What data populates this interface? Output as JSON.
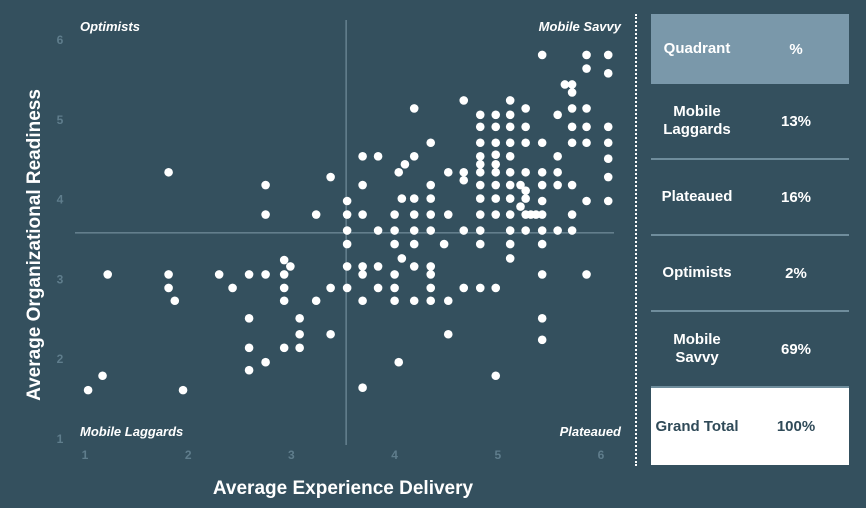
{
  "chart_data": {
    "type": "scatter",
    "xlabel": "Average Experience Delivery",
    "ylabel": "Average Organizational Readiness",
    "xlim": [
      1,
      6
    ],
    "ylim": [
      1,
      6
    ],
    "x_ticks": [
      "1",
      "2",
      "3",
      "4",
      "5",
      "6"
    ],
    "y_ticks": [
      "1",
      "2",
      "3",
      "4",
      "5",
      "6"
    ],
    "grid": false,
    "dividers": {
      "x": 3.53,
      "y": 3.57
    },
    "quadrant_labels": {
      "top_left": "Optimists",
      "top_right": "Mobile Savvy",
      "bottom_left": "Mobile Laggards",
      "bottom_right": "Plateaued"
    },
    "points": [
      [
        1.03,
        1.6
      ],
      [
        1.17,
        1.78
      ],
      [
        1.22,
        3.05
      ],
      [
        1.81,
        4.33
      ],
      [
        1.81,
        3.05
      ],
      [
        1.81,
        2.88
      ],
      [
        1.87,
        2.72
      ],
      [
        1.95,
        1.6
      ],
      [
        2.3,
        3.05
      ],
      [
        2.43,
        2.88
      ],
      [
        2.59,
        3.05
      ],
      [
        2.59,
        2.5
      ],
      [
        2.59,
        2.13
      ],
      [
        2.59,
        1.85
      ],
      [
        2.75,
        4.17
      ],
      [
        2.75,
        3.8
      ],
      [
        2.75,
        3.05
      ],
      [
        2.75,
        1.95
      ],
      [
        2.93,
        3.23
      ],
      [
        2.93,
        3.05
      ],
      [
        2.93,
        2.88
      ],
      [
        2.93,
        2.72
      ],
      [
        2.93,
        2.13
      ],
      [
        2.99,
        3.15
      ],
      [
        3.08,
        2.5
      ],
      [
        3.08,
        2.3
      ],
      [
        3.08,
        2.13
      ],
      [
        3.24,
        3.8
      ],
      [
        3.24,
        2.72
      ],
      [
        3.38,
        4.27
      ],
      [
        3.38,
        2.88
      ],
      [
        3.38,
        2.3
      ],
      [
        3.54,
        3.97
      ],
      [
        3.54,
        3.8
      ],
      [
        3.54,
        3.6
      ],
      [
        3.54,
        3.43
      ],
      [
        3.54,
        3.15
      ],
      [
        3.54,
        2.88
      ],
      [
        3.69,
        4.53
      ],
      [
        3.69,
        4.17
      ],
      [
        3.69,
        3.8
      ],
      [
        3.69,
        3.15
      ],
      [
        3.69,
        3.05
      ],
      [
        3.69,
        2.72
      ],
      [
        3.69,
        1.63
      ],
      [
        3.84,
        4.53
      ],
      [
        3.84,
        3.6
      ],
      [
        3.84,
        3.15
      ],
      [
        3.84,
        2.88
      ],
      [
        4.0,
        3.8
      ],
      [
        4.0,
        3.6
      ],
      [
        4.0,
        3.43
      ],
      [
        4.0,
        3.05
      ],
      [
        4.0,
        2.88
      ],
      [
        4.0,
        2.72
      ],
      [
        4.04,
        4.33
      ],
      [
        4.04,
        1.95
      ],
      [
        4.07,
        4.0
      ],
      [
        4.07,
        3.25
      ],
      [
        4.1,
        4.43
      ],
      [
        4.19,
        5.13
      ],
      [
        4.19,
        4.53
      ],
      [
        4.19,
        4.0
      ],
      [
        4.19,
        3.8
      ],
      [
        4.19,
        3.6
      ],
      [
        4.19,
        3.43
      ],
      [
        4.19,
        3.15
      ],
      [
        4.19,
        2.72
      ],
      [
        4.35,
        4.7
      ],
      [
        4.35,
        4.17
      ],
      [
        4.35,
        4.0
      ],
      [
        4.35,
        3.8
      ],
      [
        4.35,
        3.6
      ],
      [
        4.35,
        3.15
      ],
      [
        4.35,
        3.05
      ],
      [
        4.35,
        2.88
      ],
      [
        4.35,
        2.72
      ],
      [
        4.48,
        3.43
      ],
      [
        4.52,
        4.33
      ],
      [
        4.52,
        3.8
      ],
      [
        4.52,
        2.72
      ],
      [
        4.52,
        2.3
      ],
      [
        4.67,
        5.23
      ],
      [
        4.67,
        4.33
      ],
      [
        4.67,
        4.23
      ],
      [
        4.67,
        3.6
      ],
      [
        4.67,
        2.88
      ],
      [
        4.83,
        5.05
      ],
      [
        4.83,
        4.9
      ],
      [
        4.83,
        4.7
      ],
      [
        4.83,
        4.53
      ],
      [
        4.83,
        4.43
      ],
      [
        4.83,
        4.33
      ],
      [
        4.83,
        4.17
      ],
      [
        4.83,
        4.0
      ],
      [
        4.83,
        3.8
      ],
      [
        4.83,
        3.6
      ],
      [
        4.83,
        3.43
      ],
      [
        4.83,
        2.88
      ],
      [
        4.98,
        5.05
      ],
      [
        4.98,
        4.9
      ],
      [
        4.98,
        4.7
      ],
      [
        4.98,
        4.55
      ],
      [
        4.98,
        4.43
      ],
      [
        4.98,
        4.33
      ],
      [
        4.98,
        4.17
      ],
      [
        4.98,
        4.0
      ],
      [
        4.98,
        3.8
      ],
      [
        4.98,
        2.88
      ],
      [
        4.98,
        1.78
      ],
      [
        5.12,
        5.23
      ],
      [
        5.12,
        5.05
      ],
      [
        5.12,
        4.9
      ],
      [
        5.12,
        4.7
      ],
      [
        5.12,
        4.53
      ],
      [
        5.12,
        4.33
      ],
      [
        5.12,
        4.17
      ],
      [
        5.12,
        4.0
      ],
      [
        5.12,
        3.8
      ],
      [
        5.12,
        3.6
      ],
      [
        5.12,
        3.43
      ],
      [
        5.12,
        3.25
      ],
      [
        5.22,
        4.17
      ],
      [
        5.22,
        3.9
      ],
      [
        5.27,
        5.13
      ],
      [
        5.27,
        4.9
      ],
      [
        5.27,
        4.7
      ],
      [
        5.27,
        4.33
      ],
      [
        5.27,
        4.1
      ],
      [
        5.27,
        4.0
      ],
      [
        5.27,
        3.8
      ],
      [
        5.27,
        3.6
      ],
      [
        5.32,
        3.8
      ],
      [
        5.37,
        3.8
      ],
      [
        5.43,
        5.8
      ],
      [
        5.43,
        4.7
      ],
      [
        5.43,
        4.33
      ],
      [
        5.43,
        4.17
      ],
      [
        5.43,
        3.97
      ],
      [
        5.43,
        3.8
      ],
      [
        5.43,
        3.6
      ],
      [
        5.43,
        3.43
      ],
      [
        5.43,
        3.05
      ],
      [
        5.43,
        2.5
      ],
      [
        5.43,
        2.23
      ],
      [
        5.58,
        5.05
      ],
      [
        5.58,
        4.53
      ],
      [
        5.58,
        4.33
      ],
      [
        5.58,
        4.17
      ],
      [
        5.58,
        3.6
      ],
      [
        5.65,
        5.43
      ],
      [
        5.72,
        5.43
      ],
      [
        5.72,
        5.33
      ],
      [
        5.72,
        5.13
      ],
      [
        5.72,
        4.9
      ],
      [
        5.72,
        4.7
      ],
      [
        5.72,
        4.17
      ],
      [
        5.72,
        3.8
      ],
      [
        5.72,
        3.6
      ],
      [
        5.86,
        5.8
      ],
      [
        5.86,
        5.63
      ],
      [
        5.86,
        5.13
      ],
      [
        5.86,
        4.9
      ],
      [
        5.86,
        4.7
      ],
      [
        5.86,
        3.97
      ],
      [
        5.86,
        3.05
      ],
      [
        6.07,
        5.8
      ],
      [
        6.07,
        5.57
      ],
      [
        6.07,
        4.9
      ],
      [
        6.07,
        4.7
      ],
      [
        6.07,
        4.5
      ],
      [
        6.07,
        4.27
      ],
      [
        6.07,
        3.97
      ]
    ]
  },
  "table": {
    "header": {
      "col1": "Quadrant",
      "col2": "%"
    },
    "rows": [
      {
        "name": "Mobile Laggards",
        "pct": "13%"
      },
      {
        "name": "Plateaued",
        "pct": "16%"
      },
      {
        "name": "Optimists",
        "pct": "2%"
      },
      {
        "name": "Mobile Savvy",
        "pct": "69%"
      }
    ],
    "total": {
      "name": "Grand Total",
      "pct": "100%"
    }
  },
  "colors": {
    "background": "#34505e",
    "dots": "#ffffff",
    "tick_labels": "#5f7d8c",
    "table_header": "#7a98aa",
    "table_total_bg": "#ffffff"
  }
}
